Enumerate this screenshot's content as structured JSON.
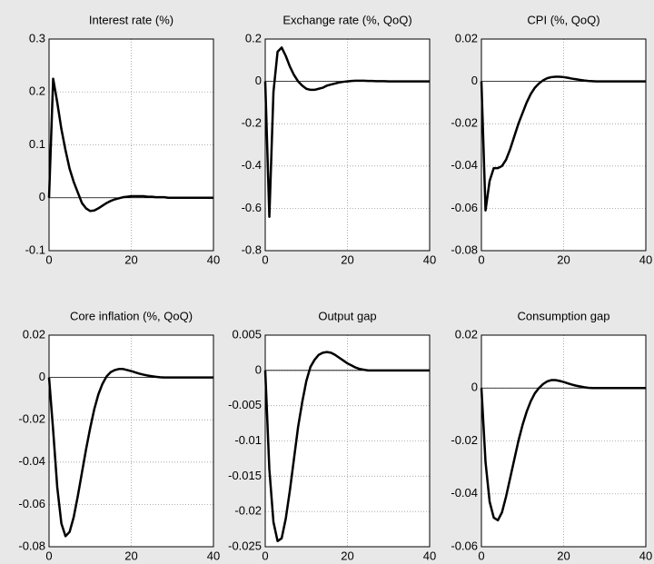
{
  "chart_data": [
    {
      "type": "line",
      "title": "Interest rate (%)",
      "color": "#000000",
      "grid": true,
      "x": [
        0,
        1,
        2,
        3,
        4,
        5,
        6,
        7,
        8,
        9,
        10,
        11,
        12,
        13,
        14,
        15,
        16,
        17,
        18,
        19,
        20,
        21,
        22,
        23,
        24,
        25,
        26,
        27,
        28,
        29,
        30,
        31,
        32,
        33,
        34,
        35,
        36,
        37,
        38,
        39,
        40
      ],
      "values": [
        0,
        0.225,
        0.18,
        0.13,
        0.09,
        0.055,
        0.03,
        0.01,
        -0.01,
        -0.02,
        -0.025,
        -0.024,
        -0.02,
        -0.015,
        -0.01,
        -0.006,
        -0.003,
        -0.001,
        0.001,
        0.002,
        0.003,
        0.003,
        0.003,
        0.003,
        0.002,
        0.002,
        0.001,
        0.001,
        0.001,
        0,
        0,
        0,
        0,
        0,
        0,
        0,
        0,
        0,
        0,
        0,
        0
      ],
      "xlim": [
        0,
        40
      ],
      "xticks": [
        0,
        20,
        40
      ],
      "ylim": [
        -0.1,
        0.3
      ],
      "yticks": [
        -0.1,
        0,
        0.1,
        0.2,
        0.3
      ]
    },
    {
      "type": "line",
      "title": "Exchange rate (%, QoQ)",
      "color": "#000000",
      "grid": true,
      "x": [
        0,
        1,
        2,
        3,
        4,
        5,
        6,
        7,
        8,
        9,
        10,
        11,
        12,
        13,
        14,
        15,
        16,
        17,
        18,
        19,
        20,
        21,
        22,
        23,
        24,
        25,
        26,
        27,
        28,
        29,
        30,
        31,
        32,
        33,
        34,
        35,
        36,
        37,
        38,
        39,
        40
      ],
      "values": [
        0,
        -0.64,
        -0.05,
        0.14,
        0.16,
        0.12,
        0.07,
        0.03,
        0,
        -0.02,
        -0.035,
        -0.04,
        -0.04,
        -0.035,
        -0.03,
        -0.02,
        -0.015,
        -0.01,
        -0.005,
        -0.002,
        0,
        0.002,
        0.003,
        0.003,
        0.003,
        0.002,
        0.002,
        0.001,
        0.001,
        0.001,
        0,
        0,
        0,
        0,
        0,
        0,
        0,
        0,
        0,
        0,
        0
      ],
      "xlim": [
        0,
        40
      ],
      "xticks": [
        0,
        20,
        40
      ],
      "ylim": [
        -0.8,
        0.2
      ],
      "yticks": [
        -0.8,
        -0.6,
        -0.4,
        -0.2,
        0,
        0.2
      ]
    },
    {
      "type": "line",
      "title": "CPI (%, QoQ)",
      "color": "#000000",
      "grid": true,
      "x": [
        0,
        1,
        2,
        3,
        4,
        5,
        6,
        7,
        8,
        9,
        10,
        11,
        12,
        13,
        14,
        15,
        16,
        17,
        18,
        19,
        20,
        21,
        22,
        23,
        24,
        25,
        26,
        27,
        28,
        29,
        30,
        31,
        32,
        33,
        34,
        35,
        36,
        37,
        38,
        39,
        40
      ],
      "values": [
        0,
        -0.061,
        -0.047,
        -0.041,
        -0.041,
        -0.04,
        -0.037,
        -0.032,
        -0.026,
        -0.02,
        -0.015,
        -0.01,
        -0.006,
        -0.003,
        -0.001,
        0.0005,
        0.0015,
        0.002,
        0.0022,
        0.0022,
        0.002,
        0.0017,
        0.0013,
        0.001,
        0.0007,
        0.0004,
        0.0002,
        0.0001,
        0,
        0,
        0,
        0,
        0,
        0,
        0,
        0,
        0,
        0,
        0,
        0,
        0
      ],
      "xlim": [
        0,
        40
      ],
      "xticks": [
        0,
        20,
        40
      ],
      "ylim": [
        -0.08,
        0.02
      ],
      "yticks": [
        -0.08,
        -0.06,
        -0.04,
        -0.02,
        0,
        0.02
      ]
    },
    {
      "type": "line",
      "title": "Core inflation (%, QoQ)",
      "color": "#000000",
      "grid": true,
      "x": [
        0,
        1,
        2,
        3,
        4,
        5,
        6,
        7,
        8,
        9,
        10,
        11,
        12,
        13,
        14,
        15,
        16,
        17,
        18,
        19,
        20,
        21,
        22,
        23,
        24,
        25,
        26,
        27,
        28,
        29,
        30,
        31,
        32,
        33,
        34,
        35,
        36,
        37,
        38,
        39,
        40
      ],
      "values": [
        0,
        -0.025,
        -0.052,
        -0.069,
        -0.075,
        -0.073,
        -0.066,
        -0.056,
        -0.045,
        -0.034,
        -0.024,
        -0.015,
        -0.008,
        -0.003,
        0.0005,
        0.0025,
        0.0035,
        0.004,
        0.004,
        0.0035,
        0.003,
        0.0024,
        0.0018,
        0.0013,
        0.0009,
        0.0006,
        0.0003,
        0.0001,
        0,
        0,
        0,
        0,
        0,
        0,
        0,
        0,
        0,
        0,
        0,
        0,
        0
      ],
      "xlim": [
        0,
        40
      ],
      "xticks": [
        0,
        20,
        40
      ],
      "ylim": [
        -0.08,
        0.02
      ],
      "yticks": [
        -0.08,
        -0.06,
        -0.04,
        -0.02,
        0,
        0.02
      ]
    },
    {
      "type": "line",
      "title": "Output gap",
      "color": "#000000",
      "grid": true,
      "x": [
        0,
        1,
        2,
        3,
        4,
        5,
        6,
        7,
        8,
        9,
        10,
        11,
        12,
        13,
        14,
        15,
        16,
        17,
        18,
        19,
        20,
        21,
        22,
        23,
        24,
        25,
        26,
        27,
        28,
        29,
        30,
        31,
        32,
        33,
        34,
        35,
        36,
        37,
        38,
        39,
        40
      ],
      "values": [
        0,
        -0.014,
        -0.0215,
        -0.0242,
        -0.0238,
        -0.021,
        -0.017,
        -0.0125,
        -0.008,
        -0.0045,
        -0.0015,
        0.0005,
        0.0015,
        0.0022,
        0.0025,
        0.0026,
        0.0025,
        0.0022,
        0.0018,
        0.0014,
        0.001,
        0.0007,
        0.0004,
        0.0002,
        0.0001,
        0,
        0,
        0,
        0,
        0,
        0,
        0,
        0,
        0,
        0,
        0,
        0,
        0,
        0,
        0,
        0
      ],
      "xlim": [
        0,
        40
      ],
      "xticks": [
        0,
        20,
        40
      ],
      "ylim": [
        -0.025,
        0.005
      ],
      "yticks": [
        -0.025,
        -0.02,
        -0.015,
        -0.01,
        -0.005,
        0,
        0.005
      ]
    },
    {
      "type": "line",
      "title": "Consumption gap",
      "color": "#000000",
      "grid": true,
      "x": [
        0,
        1,
        2,
        3,
        4,
        5,
        6,
        7,
        8,
        9,
        10,
        11,
        12,
        13,
        14,
        15,
        16,
        17,
        18,
        19,
        20,
        21,
        22,
        23,
        24,
        25,
        26,
        27,
        28,
        29,
        30,
        31,
        32,
        33,
        34,
        35,
        36,
        37,
        38,
        39,
        40
      ],
      "values": [
        0,
        -0.028,
        -0.043,
        -0.049,
        -0.05,
        -0.047,
        -0.041,
        -0.034,
        -0.027,
        -0.02,
        -0.014,
        -0.009,
        -0.005,
        -0.002,
        0,
        0.0015,
        0.0025,
        0.003,
        0.003,
        0.0027,
        0.0023,
        0.0018,
        0.0013,
        0.0009,
        0.0006,
        0.0003,
        0.0001,
        0,
        0,
        0,
        0,
        0,
        0,
        0,
        0,
        0,
        0,
        0,
        0,
        0,
        0
      ],
      "xlim": [
        0,
        40
      ],
      "xticks": [
        0,
        20,
        40
      ],
      "ylim": [
        -0.06,
        0.02
      ],
      "yticks": [
        -0.06,
        -0.04,
        -0.02,
        0,
        0.02
      ]
    }
  ]
}
